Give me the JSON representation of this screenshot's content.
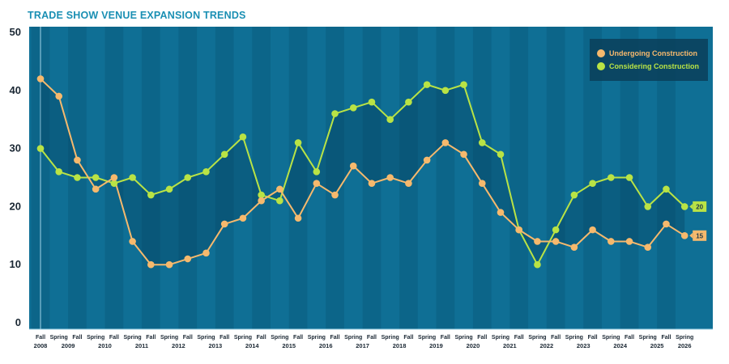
{
  "title": "TRADE SHOW VENUE EXPANSION TRENDS",
  "colors": {
    "background": "#0f6f95",
    "band_dark": "#0b5d80",
    "undergoing": "#f6b96d",
    "considering": "#b9e345",
    "legend_bg": "#0a3f5a"
  },
  "chart_data": {
    "type": "line",
    "title": "TRADE SHOW VENUE EXPANSION TRENDS",
    "xlabel": "",
    "ylabel": "",
    "ylim": [
      0,
      50
    ],
    "yticks": [
      "0",
      "10",
      "20",
      "30",
      "40",
      "50"
    ],
    "categories": [
      "Fall 2008",
      "Spring 2009",
      "Fall 2009",
      "Spring 2010",
      "Fall 2010",
      "Spring 2011",
      "Fall 2011",
      "Spring 2012",
      "Fall 2012",
      "Spring 2013",
      "Fall 2013",
      "Spring 2014",
      "Fall 2014",
      "Spring 2015",
      "Fall 2015",
      "Spring 2016",
      "Fall 2016",
      "Spring 2017",
      "Fall 2017",
      "Spring 2018",
      "Fall 2018",
      "Spring 2019",
      "Fall 2019",
      "Spring 2020",
      "Fall 2020",
      "Spring 2021",
      "Fall 2021",
      "Spring 2022",
      "Fall 2022",
      "Spring 2023",
      "Fall 2023",
      "Spring 2024",
      "Fall 2024",
      "Spring 2025",
      "Fall 2025",
      "Spring 2026"
    ],
    "x_seasons": [
      "Fall",
      "Spring",
      "Fall",
      "Spring",
      "Fall",
      "Spring",
      "Fall",
      "Spring",
      "Fall",
      "Spring",
      "Fall",
      "Spring",
      "Fall",
      "Spring",
      "Fall",
      "Spring",
      "Fall",
      "Spring",
      "Fall",
      "Spring",
      "Fall",
      "Spring",
      "Fall",
      "Spring",
      "Fall",
      "Spring",
      "Fall",
      "Spring",
      "Fall",
      "Spring",
      "Fall",
      "Spring",
      "Fall",
      "Spring",
      "Fall",
      "Spring"
    ],
    "x_years": [
      "2008",
      "2009",
      "2010",
      "2011",
      "2012",
      "2013",
      "2014",
      "2015",
      "2016",
      "2017",
      "2018",
      "2019",
      "2020",
      "2021",
      "2022",
      "2023",
      "2024",
      "2025",
      "2026"
    ],
    "series": [
      {
        "name": "Undergoing Construction",
        "color": "#f6b96d",
        "values": [
          42,
          39,
          28,
          23,
          25,
          14,
          10,
          10,
          11,
          12,
          17,
          18,
          21,
          23,
          18,
          24,
          22,
          27,
          24,
          25,
          24,
          28,
          31,
          29,
          24,
          19,
          16,
          14,
          14,
          13,
          16,
          14,
          14,
          13,
          17,
          15
        ],
        "end_label": "15"
      },
      {
        "name": "Considering Construction",
        "color": "#b9e345",
        "values": [
          30,
          26,
          25,
          25,
          24,
          25,
          22,
          23,
          25,
          26,
          29,
          32,
          22,
          21,
          31,
          26,
          36,
          37,
          38,
          35,
          38,
          41,
          40,
          41,
          31,
          29,
          16,
          10,
          16,
          22,
          24,
          25,
          25,
          20,
          23,
          20
        ],
        "end_label": "20"
      }
    ],
    "legend_position": "top-right",
    "grid": false
  }
}
